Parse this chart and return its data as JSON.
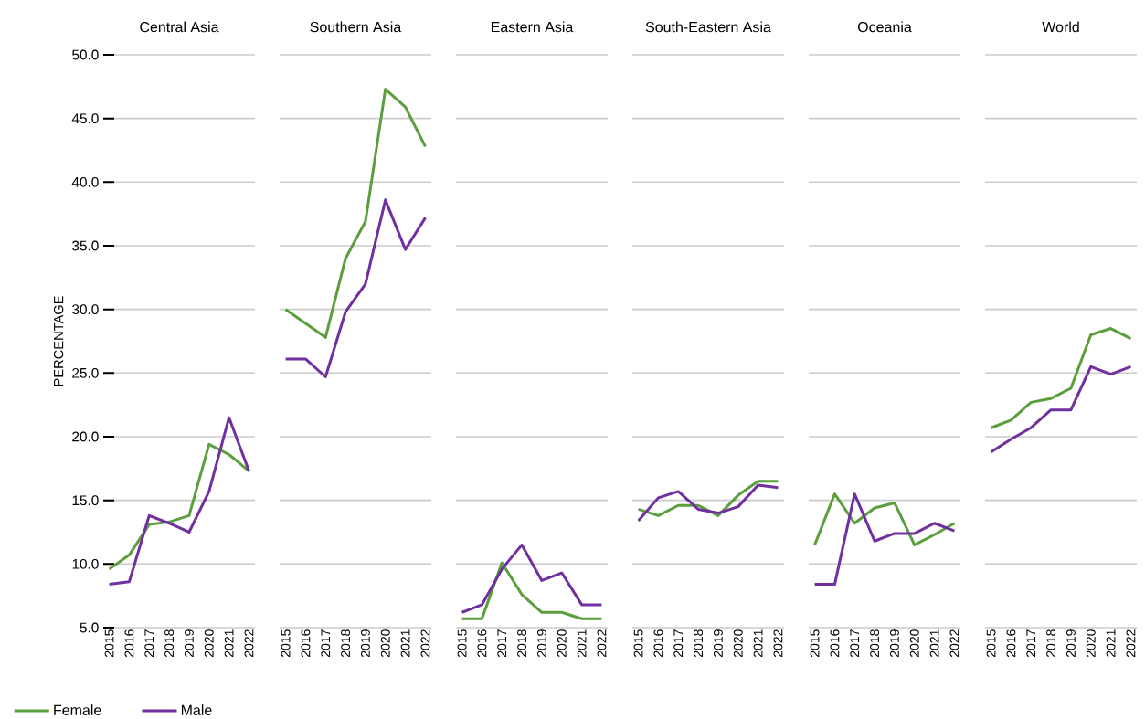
{
  "chart_data": [
    {
      "type": "line",
      "title": "Central Asia",
      "ylabel": "PERCENTAGE",
      "categories": [
        "2015",
        "2016",
        "2017",
        "2018",
        "2019",
        "2020",
        "2021",
        "2022"
      ],
      "ylim": [
        5,
        50
      ],
      "yticks": [
        {
          "value": 5,
          "label": "5.0"
        },
        {
          "value": 10,
          "label": "10.0"
        },
        {
          "value": 15,
          "label": "15.0"
        },
        {
          "value": 20,
          "label": "20.0"
        },
        {
          "value": 25,
          "label": "25.0"
        },
        {
          "value": 30,
          "label": "30.0"
        },
        {
          "value": 35,
          "label": "35.0"
        },
        {
          "value": 40,
          "label": "40.0"
        },
        {
          "value": 45,
          "label": "45.0"
        },
        {
          "value": 50,
          "label": "50.0"
        }
      ],
      "grid": "y",
      "legend": "bottom left",
      "marker": "none",
      "line_style": "solid",
      "series": [
        {
          "name": "Female",
          "color": "#5b9e3d",
          "values": [
            9.6,
            10.7,
            13.1,
            13.3,
            13.8,
            19.4,
            18.6,
            17.3
          ]
        },
        {
          "name": "Male",
          "color": "#7030a0",
          "values": [
            8.4,
            8.6,
            13.8,
            13.2,
            12.5,
            15.7,
            21.5,
            17.3
          ]
        }
      ]
    },
    {
      "type": "line",
      "title": "Southern Asia",
      "categories": [
        "2015",
        "2016",
        "2017",
        "2018",
        "2019",
        "2020",
        "2021",
        "2022"
      ],
      "ylim": [
        5,
        50
      ],
      "tick_labels": "x",
      "yticks": [
        5,
        10,
        15,
        20,
        25,
        30,
        35,
        40,
        45,
        50
      ],
      "grid": "y",
      "marker": "none",
      "line_style": "solid",
      "series": [
        {
          "color": "#5b9e3d",
          "values": [
            30.0,
            28.9,
            27.8,
            34.0,
            36.9,
            47.3,
            45.9,
            42.8
          ]
        },
        {
          "color": "#7030a0",
          "values": [
            26.1,
            26.1,
            24.7,
            29.8,
            32.0,
            38.6,
            34.7,
            37.2
          ]
        }
      ]
    },
    {
      "type": "line",
      "title": "Eastern Asia",
      "categories": [
        "2015",
        "2016",
        "2017",
        "2018",
        "2019",
        "2020",
        "2021",
        "2022"
      ],
      "ylim": [
        5,
        50
      ],
      "tick_labels": "x",
      "yticks": [
        5,
        10,
        15,
        20,
        25,
        30,
        35,
        40,
        45,
        50
      ],
      "grid": "y",
      "marker": "none",
      "line_style": "solid",
      "series": [
        {
          "color": "#5b9e3d",
          "values": [
            5.7,
            5.7,
            10.1,
            7.6,
            6.2,
            6.2,
            5.7,
            5.7
          ]
        },
        {
          "color": "#7030a0",
          "values": [
            6.2,
            6.8,
            9.6,
            11.5,
            8.7,
            9.3,
            6.8,
            6.8
          ]
        }
      ]
    },
    {
      "type": "line",
      "title": "South-Eastern Asia",
      "categories": [
        "2015",
        "2016",
        "2017",
        "2018",
        "2019",
        "2020",
        "2021",
        "2022"
      ],
      "ylim": [
        5,
        50
      ],
      "tick_labels": "x",
      "yticks": [
        5,
        10,
        15,
        20,
        25,
        30,
        35,
        40,
        45,
        50
      ],
      "grid": "y",
      "marker": "none",
      "line_style": "solid",
      "series": [
        {
          "color": "#5b9e3d",
          "values": [
            14.3,
            13.8,
            14.6,
            14.6,
            13.8,
            15.4,
            16.5,
            16.5
          ]
        },
        {
          "color": "#7030a0",
          "values": [
            13.4,
            15.2,
            15.7,
            14.3,
            14.0,
            14.5,
            16.2,
            16.0
          ]
        }
      ]
    },
    {
      "type": "line",
      "title": "Oceania",
      "categories": [
        "2015",
        "2016",
        "2017",
        "2018",
        "2019",
        "2020",
        "2021",
        "2022"
      ],
      "ylim": [
        5,
        50
      ],
      "tick_labels": "x",
      "yticks": [
        5,
        10,
        15,
        20,
        25,
        30,
        35,
        40,
        45,
        50
      ],
      "grid": "y",
      "marker": "none",
      "line_style": "solid",
      "series": [
        {
          "color": "#5b9e3d",
          "values": [
            11.5,
            15.5,
            13.2,
            14.4,
            14.8,
            11.5,
            12.3,
            13.2
          ]
        },
        {
          "color": "#7030a0",
          "values": [
            8.4,
            8.4,
            15.5,
            11.8,
            12.4,
            12.4,
            13.2,
            12.6
          ]
        }
      ]
    },
    {
      "type": "line",
      "title": "World",
      "categories": [
        "2015",
        "2016",
        "2017",
        "2018",
        "2019",
        "2020",
        "2021",
        "2022"
      ],
      "ylim": [
        5,
        50
      ],
      "tick_labels": "x",
      "yticks": [
        5,
        10,
        15,
        20,
        25,
        30,
        35,
        40,
        45,
        50
      ],
      "grid": "y",
      "marker": "none",
      "line_style": "solid",
      "series": [
        {
          "color": "#5b9e3d",
          "values": [
            20.7,
            21.3,
            22.7,
            23.0,
            23.8,
            28.0,
            28.5,
            27.7
          ]
        },
        {
          "color": "#7030a0",
          "values": [
            18.8,
            19.8,
            20.7,
            22.1,
            22.1,
            25.5,
            24.9,
            25.5
          ]
        }
      ]
    }
  ]
}
